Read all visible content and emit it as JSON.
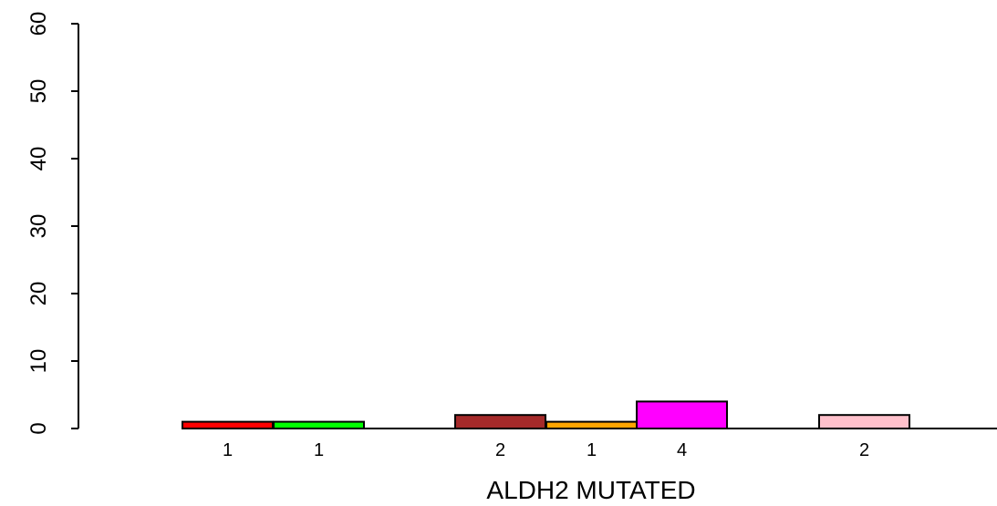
{
  "chart_data": {
    "type": "bar",
    "title": "",
    "xlabel": "ALDH2 MUTATED",
    "ylabel": "",
    "ylim": [
      0,
      60
    ],
    "yticks": [
      0,
      10,
      20,
      30,
      40,
      50,
      60
    ],
    "grid": false,
    "legend": "none",
    "bars": [
      {
        "value": 1,
        "label": "1",
        "color": "#ff0000"
      },
      {
        "value": 1,
        "label": "1",
        "color": "#00ff00"
      },
      {
        "value": 2,
        "label": "2",
        "color": "#a52a2a"
      },
      {
        "value": 1,
        "label": "1",
        "color": "#ffa500"
      },
      {
        "value": 4,
        "label": "4",
        "color": "#ff00ff"
      },
      {
        "value": 2,
        "label": "2",
        "color": "#ffc0cb"
      }
    ]
  }
}
